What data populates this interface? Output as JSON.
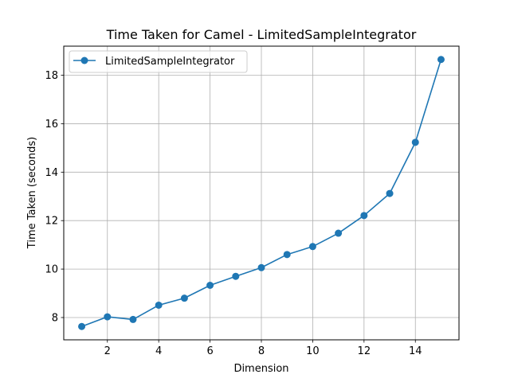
{
  "chart_data": {
    "type": "line",
    "title": "Time Taken for Camel - LimitedSampleIntegrator",
    "xlabel": "Dimension",
    "ylabel": "Time Taken (seconds)",
    "x": [
      1,
      2,
      3,
      4,
      5,
      6,
      7,
      8,
      9,
      10,
      11,
      12,
      13,
      14,
      15
    ],
    "series": [
      {
        "name": "LimitedSampleIntegrator",
        "color": "#1f77b4",
        "marker": "circle",
        "values": [
          7.63,
          8.03,
          7.92,
          8.51,
          8.8,
          9.33,
          9.7,
          10.06,
          10.6,
          10.93,
          11.48,
          12.21,
          13.12,
          15.23,
          18.65
        ]
      }
    ],
    "xlim": [
      0.3,
      15.7
    ],
    "ylim": [
      7.08,
      19.2
    ],
    "xticks": [
      2,
      4,
      6,
      8,
      10,
      12,
      14
    ],
    "yticks": [
      8,
      10,
      12,
      14,
      16,
      18
    ],
    "grid": true,
    "legend_position": "upper left"
  }
}
